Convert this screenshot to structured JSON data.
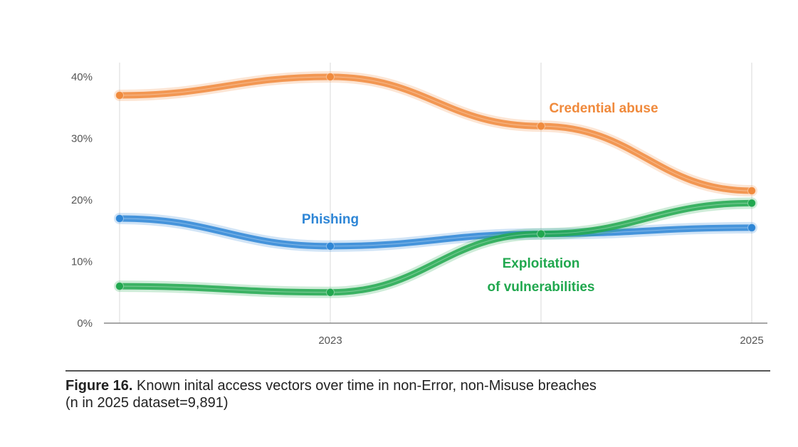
{
  "chart_data": {
    "type": "line",
    "x": [
      2022,
      2023,
      2024,
      2025
    ],
    "x_tick_labels": [
      {
        "x": 2023,
        "label": "2023"
      },
      {
        "x": 2025,
        "label": "2025"
      }
    ],
    "y_ticks": [
      {
        "value": 0,
        "label": "0%"
      },
      {
        "value": 10,
        "label": "10%"
      },
      {
        "value": 20,
        "label": "20%"
      },
      {
        "value": 30,
        "label": "30%"
      },
      {
        "value": 40,
        "label": "40%"
      }
    ],
    "ylim": [
      0,
      40
    ],
    "xlim": [
      2022,
      2025
    ],
    "grid": "vertical lines at each year",
    "series": [
      {
        "name": "Credential abuse",
        "color": "#F08A3C",
        "values": [
          37,
          40,
          32,
          21.5
        ]
      },
      {
        "name": "Phishing",
        "color": "#2E86D6",
        "values": [
          17,
          12.5,
          14.5,
          15.5
        ]
      },
      {
        "name": "Exploitation of vulnerabilities",
        "color": "#21A84F",
        "values": [
          6,
          5,
          14.5,
          19.5
        ]
      }
    ],
    "annotations": [
      {
        "series": 0,
        "lines": [
          "Credential abuse"
        ]
      },
      {
        "series": 1,
        "lines": [
          "Phishing"
        ]
      },
      {
        "series": 2,
        "lines": [
          "Exploitation",
          "of vulnerabilities"
        ]
      }
    ]
  },
  "caption": {
    "label": "Figure 16.",
    "text_line1": " Known inital access vectors over time in non-Error, non-Misuse breaches",
    "text_line2": "(n in 2025 dataset=9,891)"
  }
}
